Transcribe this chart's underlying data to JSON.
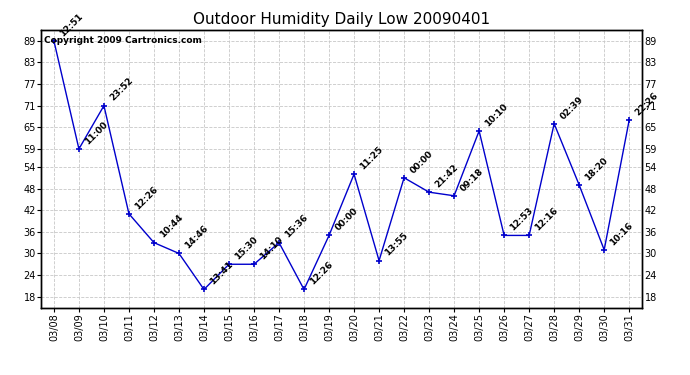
{
  "title": "Outdoor Humidity Daily Low 20090401",
  "copyright": "Copyright 2009 Cartronics.com",
  "x_labels": [
    "03/08",
    "03/09",
    "03/10",
    "03/11",
    "03/12",
    "03/13",
    "03/14",
    "03/15",
    "03/16",
    "03/17",
    "03/18",
    "03/19",
    "03/20",
    "03/21",
    "03/22",
    "03/23",
    "03/24",
    "03/25",
    "03/26",
    "03/27",
    "03/28",
    "03/29",
    "03/30",
    "03/31"
  ],
  "y_values": [
    89,
    59,
    71,
    41,
    33,
    30,
    20,
    27,
    27,
    33,
    20,
    35,
    52,
    28,
    51,
    47,
    46,
    64,
    35,
    35,
    66,
    49,
    31,
    67
  ],
  "time_labels": [
    "12:51",
    "11:00",
    "23:52",
    "12:26",
    "10:44",
    "14:46",
    "13:41",
    "15:30",
    "14:10",
    "15:36",
    "12:26",
    "00:00",
    "11:25",
    "13:55",
    "00:00",
    "21:42",
    "09:18",
    "10:10",
    "12:53",
    "12:16",
    "02:39",
    "18:20",
    "10:16",
    "22:26"
  ],
  "ylim": [
    15,
    92
  ],
  "yticks": [
    18,
    24,
    30,
    36,
    42,
    48,
    54,
    59,
    65,
    71,
    77,
    83,
    89
  ],
  "line_color": "#0000cc",
  "marker_color": "#0000cc",
  "grid_color": "#c8c8c8",
  "background_color": "#ffffff",
  "title_fontsize": 11,
  "tick_fontsize": 7,
  "annotation_fontsize": 6.5,
  "copyright_fontsize": 6.5
}
